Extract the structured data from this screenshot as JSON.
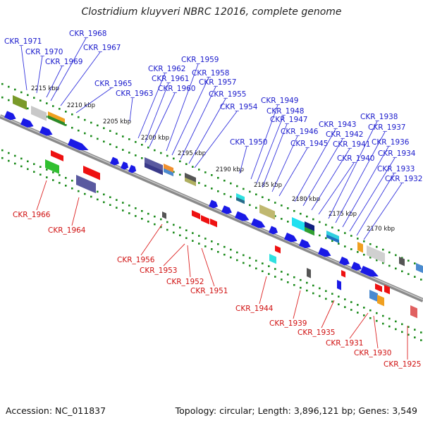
{
  "title": "Clostridium kluyveri NBRC 12016, complete genome",
  "footer": {
    "accession": "Accession: NC_011837",
    "topology": "Topology: circular; Length: 3,896,121 bp; Genes: 3,549"
  },
  "colors": {
    "backbone": "#8a8a8a",
    "ticks": "#1a8a1a",
    "forward_label": "#1a1acc",
    "reverse_label": "#d01010"
  },
  "kbp_ticks": [
    "2215 kbp",
    "2210 kbp",
    "2205 kbp",
    "2200 kbp",
    "2195 kbp",
    "2190 kbp",
    "2185 kbp",
    "2180 kbp",
    "2175 kbp",
    "2170 kbp"
  ],
  "top_labels": [
    "CKR_1971",
    "CKR_1970",
    "CKR_1969",
    "CKR_1968",
    "CKR_1967",
    "CKR_1965",
    "CKR_1963",
    "CKR_1962",
    "CKR_1961",
    "CKR_1960",
    "CKR_1959",
    "CKR_1958",
    "CKR_1957",
    "CKR_1955",
    "CKR_1954",
    "CKR_1950",
    "CKR_1949",
    "CKR_1948",
    "CKR_1947",
    "CKR_1946",
    "CKR_1945",
    "CKR_1943",
    "CKR_1942",
    "CKR_1941",
    "CKR_1940",
    "CKR_1938",
    "CKR_1937",
    "CKR_1936",
    "CKR_1934",
    "CKR_1933",
    "CKR_1932"
  ],
  "bottom_labels": [
    "CKR_1966",
    "CKR_1964",
    "CKR_1956",
    "CKR_1953",
    "CKR_1952",
    "CKR_1951",
    "CKR_1944",
    "CKR_1939",
    "CKR_1935",
    "CKR_1931",
    "CKR_1930",
    "CKR_1925"
  ]
}
